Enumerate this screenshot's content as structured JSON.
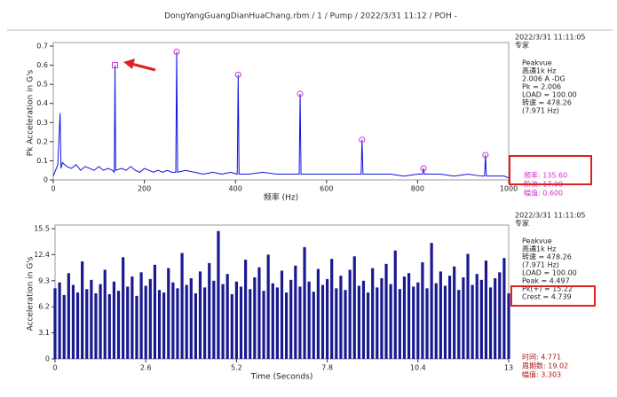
{
  "chart_data": [
    {
      "type": "line",
      "title": "DongYangGuangDianHuaChang.rbm / 1 / Pump / 2022/3/31 11:12 / POH -",
      "xlabel": "频率 (Hz)",
      "ylabel": "Pk Acceleration in G's",
      "color": "#1010e0",
      "xlim": [
        0,
        1000
      ],
      "xticks": [
        0,
        200,
        400,
        600,
        800,
        1000
      ],
      "ylim": [
        0,
        0.7
      ],
      "yticks": [
        0,
        0.1,
        0.2,
        0.3,
        0.4,
        0.5,
        0.6,
        0.7
      ],
      "x": [
        0,
        5,
        10,
        15,
        17,
        20,
        30,
        40,
        50,
        60,
        70,
        80,
        90,
        100,
        110,
        120,
        130,
        134,
        135.6,
        137,
        150,
        160,
        170,
        180,
        190,
        200,
        210,
        220,
        230,
        240,
        250,
        260,
        269,
        271,
        273,
        290,
        310,
        330,
        350,
        370,
        390,
        404,
        406,
        408,
        430,
        460,
        490,
        520,
        540,
        542,
        544,
        570,
        600,
        630,
        660,
        676,
        678,
        680,
        710,
        740,
        770,
        800,
        811,
        813,
        815,
        850,
        880,
        910,
        940,
        947,
        949,
        951,
        970,
        990,
        1000
      ],
      "values": [
        0.02,
        0.05,
        0.08,
        0.35,
        0.06,
        0.09,
        0.07,
        0.06,
        0.08,
        0.05,
        0.07,
        0.06,
        0.05,
        0.07,
        0.05,
        0.06,
        0.05,
        0.04,
        0.6,
        0.05,
        0.06,
        0.05,
        0.07,
        0.05,
        0.04,
        0.06,
        0.05,
        0.04,
        0.05,
        0.04,
        0.05,
        0.04,
        0.04,
        0.67,
        0.04,
        0.05,
        0.04,
        0.03,
        0.04,
        0.03,
        0.04,
        0.03,
        0.55,
        0.03,
        0.03,
        0.04,
        0.03,
        0.03,
        0.03,
        0.45,
        0.03,
        0.03,
        0.03,
        0.03,
        0.03,
        0.03,
        0.21,
        0.03,
        0.03,
        0.03,
        0.02,
        0.03,
        0.03,
        0.06,
        0.03,
        0.03,
        0.02,
        0.03,
        0.02,
        0.02,
        0.13,
        0.02,
        0.02,
        0.02,
        0.01
      ],
      "peak_markers": {
        "color": "#cc33cc",
        "x": [
          135.6,
          271,
          406,
          542,
          678,
          813,
          949
        ],
        "values": [
          0.6,
          0.67,
          0.55,
          0.45,
          0.21,
          0.06,
          0.13
        ]
      },
      "info": [
        "2022/3/31 11:11:05",
        "专家",
        "Peakvue",
        "高通1k Hz",
        "2.006 A -DG",
        "Pk = 2.006",
        "LOAD = 100.00",
        "转速 = 478.26",
        "(7.971 Hz)"
      ],
      "cursor": {
        "color": "#cc33cc",
        "lines": [
          "频率: 135.60",
          "阶次: 17.00",
          "幅值: 0.600"
        ]
      }
    },
    {
      "type": "stem",
      "xlabel": "Time (Seconds)",
      "ylabel": "Acceleration in G's",
      "color": "#1a1a90",
      "xlim": [
        0,
        13
      ],
      "xticks": [
        0,
        2.6,
        5.2,
        7.8,
        10.4,
        13
      ],
      "ylim": [
        0,
        15.5
      ],
      "yticks": [
        0,
        3.1,
        6.2,
        9.3,
        12.4,
        15.5
      ],
      "x": [
        0,
        0.13,
        0.26,
        0.39,
        0.52,
        0.65,
        0.78,
        0.91,
        1.04,
        1.17,
        1.3,
        1.43,
        1.56,
        1.69,
        1.82,
        1.95,
        2.08,
        2.21,
        2.34,
        2.47,
        2.6,
        2.73,
        2.86,
        2.99,
        3.12,
        3.25,
        3.38,
        3.51,
        3.64,
        3.77,
        3.9,
        4.03,
        4.16,
        4.29,
        4.42,
        4.55,
        4.68,
        4.81,
        4.94,
        5.07,
        5.2,
        5.33,
        5.46,
        5.59,
        5.72,
        5.85,
        5.98,
        6.11,
        6.24,
        6.37,
        6.5,
        6.63,
        6.76,
        6.89,
        7.02,
        7.15,
        7.28,
        7.41,
        7.54,
        7.67,
        7.8,
        7.93,
        8.06,
        8.19,
        8.32,
        8.45,
        8.58,
        8.71,
        8.84,
        8.97,
        9.1,
        9.23,
        9.36,
        9.49,
        9.62,
        9.75,
        9.88,
        10.01,
        10.14,
        10.27,
        10.4,
        10.53,
        10.66,
        10.79,
        10.92,
        11.05,
        11.18,
        11.31,
        11.44,
        11.57,
        11.7,
        11.83,
        11.96,
        12.09,
        12.22,
        12.35,
        12.48,
        12.61,
        12.74,
        12.87,
        13
      ],
      "values": [
        8.4,
        9.1,
        7.6,
        10.2,
        8.8,
        7.9,
        11.6,
        8.3,
        9.4,
        7.8,
        8.9,
        10.6,
        7.7,
        9.2,
        8.1,
        12.1,
        8.6,
        9.8,
        7.5,
        10.3,
        8.7,
        9.5,
        11.2,
        8.2,
        7.9,
        10.8,
        9.1,
        8.4,
        12.6,
        8.8,
        9.6,
        7.8,
        10.4,
        8.5,
        11.4,
        9.3,
        15.22,
        8.9,
        10.1,
        7.7,
        9.2,
        8.6,
        11.8,
        8.3,
        9.7,
        10.9,
        8.1,
        12.4,
        9.0,
        8.5,
        10.5,
        7.9,
        9.4,
        11.1,
        8.6,
        13.3,
        9.2,
        8.0,
        10.7,
        8.8,
        9.5,
        11.9,
        8.4,
        9.9,
        8.2,
        10.6,
        12.2,
        8.7,
        9.3,
        7.9,
        10.8,
        8.5,
        9.6,
        11.3,
        8.9,
        12.9,
        8.3,
        9.8,
        10.2,
        8.6,
        9.1,
        11.5,
        8.4,
        13.8,
        9.0,
        10.4,
        8.7,
        9.9,
        11.0,
        8.2,
        9.7,
        12.5,
        8.8,
        10.1,
        9.4,
        11.7,
        8.5,
        9.6,
        10.3,
        12.0,
        7.8
      ],
      "info": [
        "2022/3/31 11:11:05",
        "专家",
        "Peakvue",
        "高通1k Hz",
        "转速 = 478.26",
        "(7.971 Hz)",
        "LOAD = 100.00",
        "Peak = 4.497",
        "Pk(+) = 15.22",
        "Crest = 4.739"
      ],
      "cursor": {
        "color": "#b01818",
        "lines": [
          "时间: 4.771",
          "周期数: 19.02",
          "幅值: 3.303"
        ]
      }
    }
  ]
}
